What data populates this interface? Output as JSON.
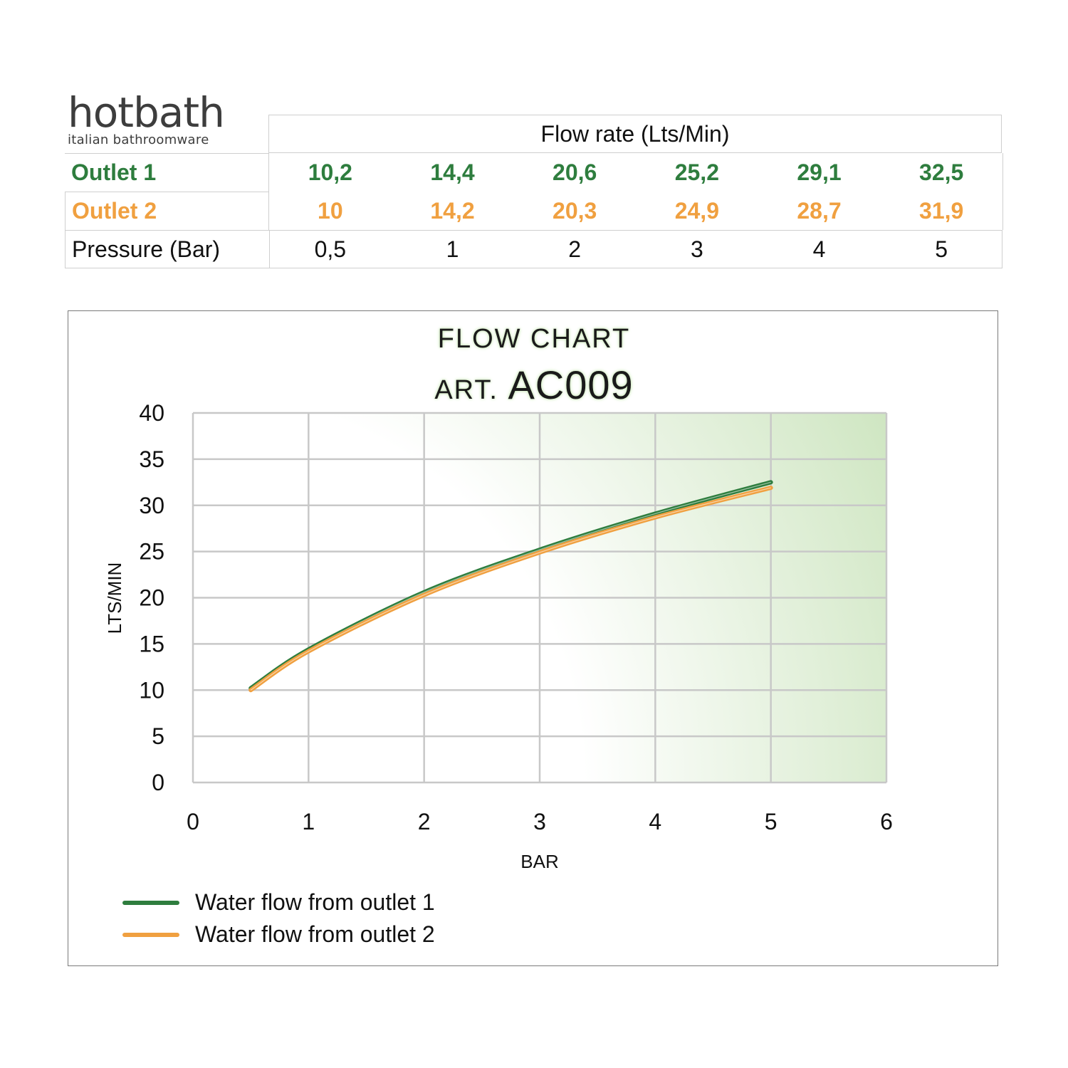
{
  "brand": {
    "name": "hotbath",
    "tagline": "italian bathroomware"
  },
  "table": {
    "header": "Flow rate (Lts/Min)",
    "rows": [
      {
        "label": "Outlet 1",
        "values": [
          "10,2",
          "14,4",
          "20,6",
          "25,2",
          "29,1",
          "32,5"
        ]
      },
      {
        "label": "Outlet 2",
        "values": [
          "10",
          "14,2",
          "20,3",
          "24,9",
          "28,7",
          "31,9"
        ]
      },
      {
        "label": "Pressure (Bar)",
        "values": [
          "0,5",
          "1",
          "2",
          "3",
          "4",
          "5"
        ]
      }
    ]
  },
  "chart_data": {
    "type": "line",
    "title": "FLOW CHART",
    "subtitle_prefix": "ART.",
    "subtitle_code": "AC009",
    "xlabel": "BAR",
    "ylabel": "LTS/MIN",
    "xlim": [
      0,
      6
    ],
    "ylim": [
      0,
      40
    ],
    "x_ticks": [
      "0",
      "1",
      "2",
      "3",
      "4",
      "5",
      "6"
    ],
    "y_ticks": [
      "0",
      "5",
      "10",
      "15",
      "20",
      "25",
      "30",
      "35",
      "40"
    ],
    "grid": true,
    "legend_position": "bottom-left",
    "series": [
      {
        "name": "Water flow from outlet 1",
        "color": "#2e7d3e",
        "x": [
          0.5,
          1,
          2,
          3,
          4,
          5
        ],
        "y": [
          10.2,
          14.4,
          20.6,
          25.2,
          29.1,
          32.5
        ]
      },
      {
        "name": "Water flow from outlet 2",
        "color": "#f0a040",
        "x": [
          0.5,
          1,
          2,
          3,
          4,
          5
        ],
        "y": [
          10,
          14.2,
          20.3,
          24.9,
          28.7,
          31.9
        ]
      }
    ]
  }
}
